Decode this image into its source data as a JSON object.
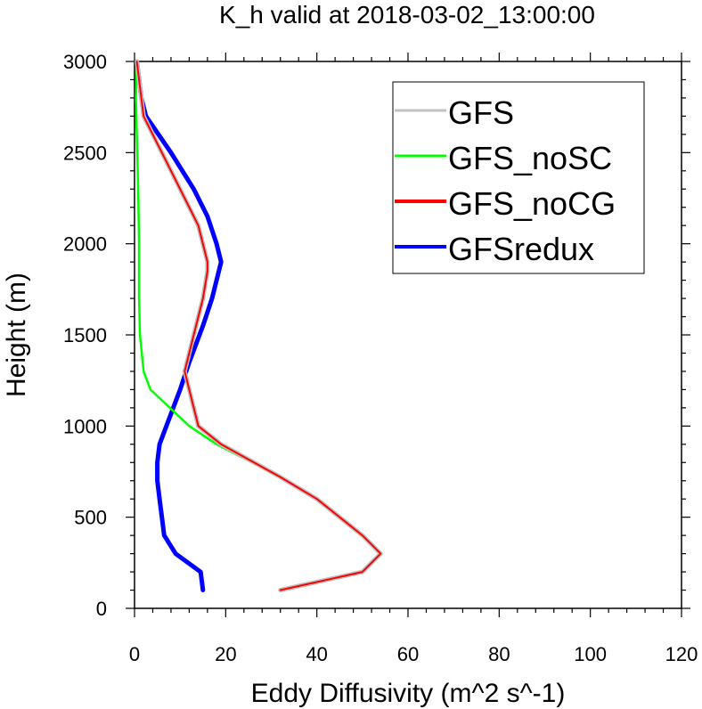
{
  "chart_data": {
    "type": "line",
    "title": "K_h valid at 2018-03-02_13:00:00",
    "xlabel": "Eddy Diffusivity (m^2 s^-1)",
    "ylabel": "Height (m)",
    "xlim": [
      0,
      120
    ],
    "ylim": [
      0,
      3000
    ],
    "xticks": [
      0,
      20,
      40,
      60,
      80,
      100,
      120
    ],
    "yticks": [
      0,
      500,
      1000,
      1500,
      2000,
      2500,
      3000
    ],
    "grid": false,
    "legend_position": "top-right",
    "series": [
      {
        "name": "GFS",
        "color": "#c0c0c0",
        "points": [
          [
            0.5,
            3000
          ],
          [
            1,
            2900
          ],
          [
            2,
            2700
          ],
          [
            6,
            2500
          ],
          [
            12,
            2200
          ],
          [
            14,
            2100
          ],
          [
            16,
            1900
          ],
          [
            16,
            1850
          ],
          [
            15,
            1700
          ],
          [
            13,
            1500
          ],
          [
            11,
            1300
          ],
          [
            14,
            1000
          ],
          [
            19,
            900
          ],
          [
            32,
            720
          ],
          [
            40,
            600
          ],
          [
            50,
            400
          ],
          [
            54,
            300
          ],
          [
            50,
            200
          ],
          [
            32,
            100
          ]
        ]
      },
      {
        "name": "GFS_noSC",
        "color": "#00ff00",
        "points": [
          [
            0.5,
            3000
          ],
          [
            0.3,
            2800
          ],
          [
            0.5,
            2600
          ],
          [
            0.8,
            2300
          ],
          [
            1,
            2000
          ],
          [
            1,
            1700
          ],
          [
            1.2,
            1500
          ],
          [
            2,
            1300
          ],
          [
            3.5,
            1200
          ],
          [
            12,
            1000
          ],
          [
            18,
            900
          ],
          [
            32,
            720
          ],
          [
            40,
            600
          ],
          [
            50,
            400
          ],
          [
            54,
            300
          ],
          [
            50,
            200
          ],
          [
            32,
            100
          ]
        ]
      },
      {
        "name": "GFS_noCG",
        "color": "#ff0000",
        "points": [
          [
            0.5,
            3000
          ],
          [
            1,
            2900
          ],
          [
            2,
            2700
          ],
          [
            6,
            2500
          ],
          [
            12,
            2200
          ],
          [
            14,
            2100
          ],
          [
            16,
            1900
          ],
          [
            16,
            1850
          ],
          [
            15,
            1700
          ],
          [
            13,
            1500
          ],
          [
            11,
            1300
          ],
          [
            14,
            1000
          ],
          [
            19,
            900
          ],
          [
            32,
            720
          ],
          [
            40,
            600
          ],
          [
            50,
            400
          ],
          [
            54,
            300
          ],
          [
            50,
            200
          ],
          [
            32,
            100
          ]
        ]
      },
      {
        "name": "GFSredux",
        "color": "#0000ff",
        "points": [
          [
            0.5,
            3000
          ],
          [
            1.5,
            2800
          ],
          [
            2.5,
            2700
          ],
          [
            8,
            2500
          ],
          [
            13,
            2300
          ],
          [
            16,
            2150
          ],
          [
            18,
            2000
          ],
          [
            19,
            1900
          ],
          [
            18,
            1800
          ],
          [
            17,
            1700
          ],
          [
            15,
            1550
          ],
          [
            12,
            1350
          ],
          [
            10,
            1200
          ],
          [
            7,
            1000
          ],
          [
            5.5,
            900
          ],
          [
            5,
            800
          ],
          [
            5,
            700
          ],
          [
            5.5,
            600
          ],
          [
            6.5,
            400
          ],
          [
            9,
            300
          ],
          [
            14.5,
            200
          ],
          [
            15,
            100
          ]
        ]
      }
    ]
  }
}
